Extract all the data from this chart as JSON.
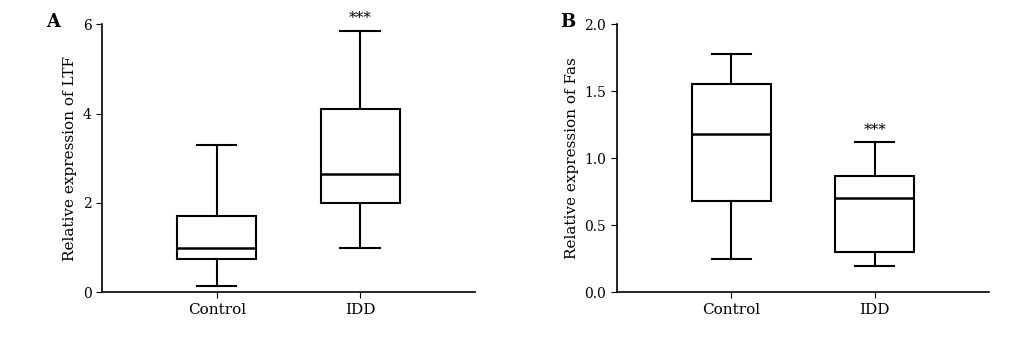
{
  "panel_A": {
    "label": "A",
    "ylabel": "Relative expression of LTF",
    "ylim": [
      0,
      6
    ],
    "yticks": [
      0,
      2,
      4,
      6
    ],
    "categories": [
      "Control",
      "IDD"
    ],
    "boxes": [
      {
        "whislo": 0.15,
        "q1": 0.75,
        "med": 1.0,
        "q3": 1.7,
        "whishi": 3.3,
        "sig": ""
      },
      {
        "whislo": 1.0,
        "q1": 2.0,
        "med": 2.65,
        "q3": 4.1,
        "whishi": 5.85,
        "sig": "***"
      }
    ]
  },
  "panel_B": {
    "label": "B",
    "ylabel": "Relative expression of Fas",
    "ylim": [
      0.0,
      2.0
    ],
    "yticks": [
      0.0,
      0.5,
      1.0,
      1.5,
      2.0
    ],
    "categories": [
      "Control",
      "IDD"
    ],
    "boxes": [
      {
        "whislo": 0.25,
        "q1": 0.68,
        "med": 1.18,
        "q3": 1.55,
        "whishi": 1.78,
        "sig": ""
      },
      {
        "whislo": 0.2,
        "q1": 0.3,
        "med": 0.7,
        "q3": 0.87,
        "whishi": 1.12,
        "sig": "***"
      }
    ]
  },
  "box_color": "#ffffff",
  "edge_color": "#000000",
  "linewidth": 1.5,
  "whisker_linewidth": 1.5,
  "cap_linewidth": 1.5,
  "median_linewidth": 1.8,
  "sig_fontsize": 11,
  "label_fontsize": 11,
  "tick_fontsize": 10,
  "panel_label_fontsize": 13,
  "background_color": "#ffffff",
  "sig_color": "#000000",
  "box_width": 0.55,
  "xlim": [
    0.2,
    2.8
  ],
  "positions": [
    1,
    2
  ]
}
